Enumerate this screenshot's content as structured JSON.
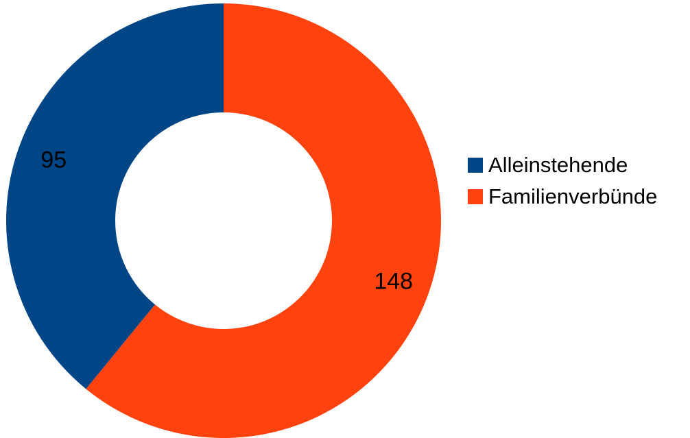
{
  "chart_data": {
    "type": "pie",
    "variant": "donut",
    "categories": [
      "Alleinstehende",
      "Familienverbünde"
    ],
    "values": [
      95,
      148
    ],
    "data_labels": [
      "95",
      "148"
    ],
    "colors": [
      "#004586",
      "#ff420e"
    ],
    "legend_position": "right",
    "start_angle": "top",
    "direction": "counter-clockwise"
  },
  "legend": {
    "items": [
      {
        "label": "Alleinstehende",
        "color": "#004586"
      },
      {
        "label": "Familienverbünde",
        "color": "#ff420e"
      }
    ]
  }
}
